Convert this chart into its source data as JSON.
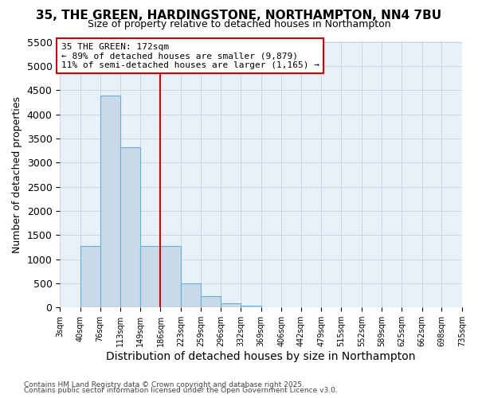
{
  "title_line1": "35, THE GREEN, HARDINGSTONE, NORTHAMPTON, NN4 7BU",
  "title_line2": "Size of property relative to detached houses in Northampton",
  "xlabel": "Distribution of detached houses by size in Northampton",
  "ylabel": "Number of detached properties",
  "footer_line1": "Contains HM Land Registry data © Crown copyright and database right 2025.",
  "footer_line2": "Contains public sector information licensed under the Open Government Licence v3.0.",
  "annotation_line1": "35 THE GREEN: 172sqm",
  "annotation_line2": "← 89% of detached houses are smaller (9,879)",
  "annotation_line3": "11% of semi-detached houses are larger (1,165) →",
  "vline_x": 186,
  "bar_edges": [
    3,
    40,
    76,
    113,
    149,
    186,
    223,
    259,
    296,
    332,
    369,
    406,
    442,
    479,
    515,
    552,
    589,
    625,
    662,
    698,
    735
  ],
  "bar_heights": [
    0,
    1280,
    4380,
    3310,
    1280,
    1280,
    500,
    230,
    80,
    30,
    10,
    5,
    3,
    2,
    1,
    0,
    0,
    0,
    0,
    0
  ],
  "bar_color": "#c8daea",
  "bar_edge_color": "#6aaed6",
  "vline_color": "#cc0000",
  "annotation_box_edge_color": "#cc0000",
  "grid_color": "#c8d8e8",
  "background_color": "#ffffff",
  "plot_bg_color": "#e8f0f8",
  "ylim": [
    0,
    5500
  ],
  "yticks": [
    0,
    500,
    1000,
    1500,
    2000,
    2500,
    3000,
    3500,
    4000,
    4500,
    5000,
    5500
  ]
}
